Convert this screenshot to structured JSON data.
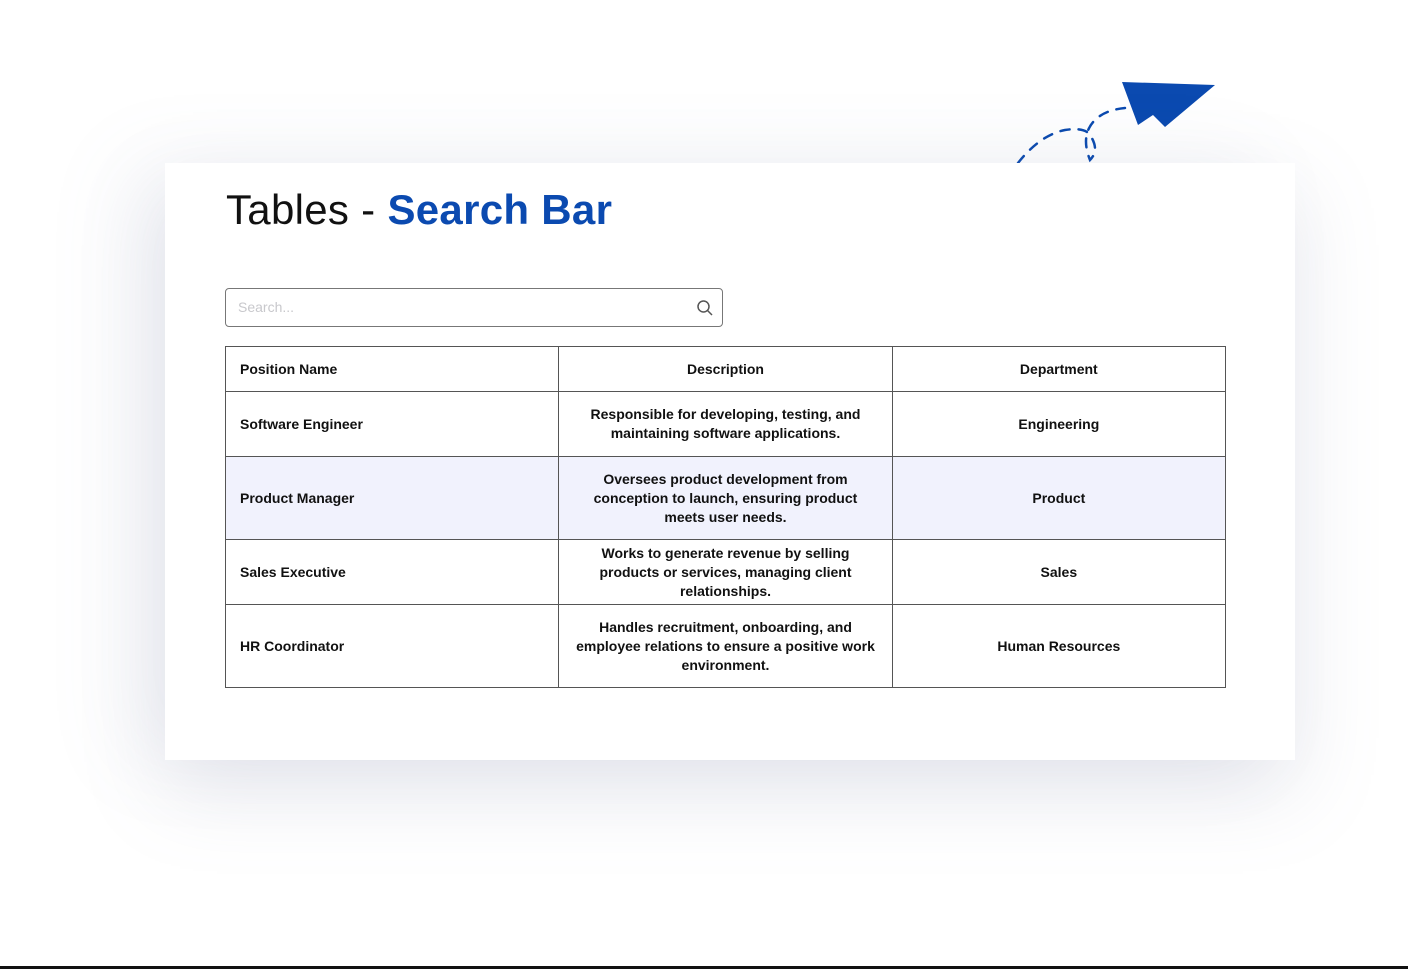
{
  "title": {
    "prefix": "Tables - ",
    "accent": "Search Bar"
  },
  "search": {
    "placeholder": "Search...",
    "value": "",
    "icon": "search-icon"
  },
  "table": {
    "headers": [
      "Position Name",
      "Description",
      "Department"
    ],
    "rows": [
      [
        "Software Engineer",
        "Responsible for developing, testing, and maintaining software applications.",
        "Engineering"
      ],
      [
        "Product Manager",
        "Oversees product development from conception to launch, ensuring product meets user needs.",
        "Product"
      ],
      [
        "Sales Executive",
        "Works to generate revenue by selling products or services, managing client relationships.",
        "Sales"
      ],
      [
        "HR Coordinator",
        "Handles recruitment, onboarding, and employee relations to ensure a positive work environment.",
        "Human Resources"
      ]
    ],
    "highlight_row": 1
  },
  "colors": {
    "accent": "#0b4ab0",
    "highlight": "#f1f2fd"
  },
  "decoration": {
    "icon": "paper-plane-icon"
  }
}
